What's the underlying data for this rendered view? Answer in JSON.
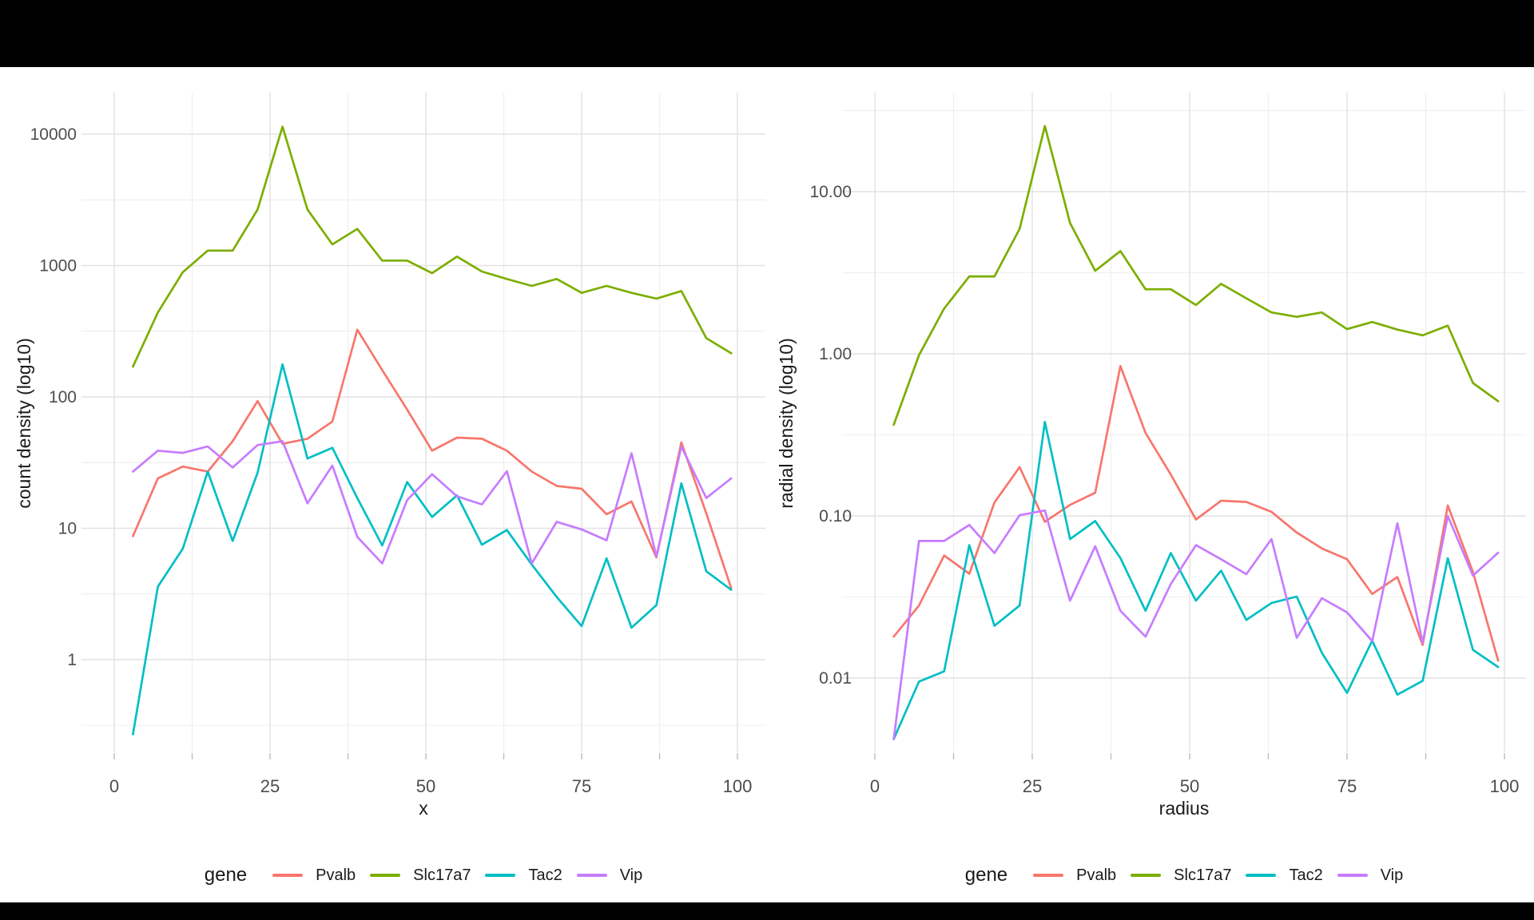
{
  "page": {
    "background": "#ffffff",
    "letterbox_color": "#000000",
    "text_color": "#1a1a1a",
    "tick_label_color": "#4d4d4d",
    "grid_major_color": "#e2e2e2",
    "grid_minor_color": "#efefef",
    "tick_mark_color": "#bdbdbd"
  },
  "chart_data": [
    {
      "type": "line",
      "panel": "left",
      "xlabel": "x",
      "ylabel": "count density (log10)",
      "legend_title": "gene",
      "legend_position": "bottom",
      "grid": true,
      "y_scale": "log10",
      "x_ticks": [
        0,
        25,
        50,
        75,
        100
      ],
      "x_minor_ticks": [
        12.5,
        37.5,
        62.5,
        87.5
      ],
      "y_tick_labels": [
        "10000",
        "1000",
        "100",
        "10",
        "1"
      ],
      "y_tick_values": [
        10000,
        1000,
        100,
        10,
        1
      ],
      "xlim": [
        0,
        100
      ],
      "x": [
        3,
        7,
        11,
        15,
        19,
        23,
        27,
        31,
        35,
        39,
        43,
        47,
        51,
        55,
        59,
        63,
        67,
        71,
        75,
        79,
        83,
        87,
        91,
        95,
        99
      ],
      "series": [
        {
          "name": "Pvalb",
          "color": "#F8766D",
          "values": [
            8.7,
            24,
            29.5,
            27,
            46,
            93,
            44,
            48,
            65,
            325,
            160,
            80,
            39,
            49,
            48,
            39,
            27,
            21,
            20,
            12.8,
            16,
            6,
            45,
            13,
            3.5
          ]
        },
        {
          "name": "Slc17a7",
          "color": "#7CAE00",
          "values": [
            170,
            440,
            890,
            1300,
            1300,
            2670,
            11400,
            2670,
            1450,
            1900,
            1090,
            1090,
            875,
            1170,
            900,
            790,
            700,
            790,
            620,
            700,
            620,
            560,
            640,
            280,
            215
          ]
        },
        {
          "name": "Tac2",
          "color": "#00BFC4",
          "values": [
            0.27,
            3.6,
            7,
            27,
            8,
            26.5,
            177,
            34,
            41,
            17,
            7.4,
            22.5,
            12.2,
            17.8,
            7.5,
            9.7,
            5.3,
            3,
            1.8,
            5.9,
            1.75,
            2.6,
            22,
            4.7,
            3.4
          ]
        },
        {
          "name": "Vip",
          "color": "#C77CFF",
          "values": [
            27,
            39,
            37.5,
            42,
            29,
            43,
            46,
            15.5,
            30,
            8.6,
            5.4,
            16.4,
            25.8,
            17.5,
            15.2,
            27.2,
            5.4,
            11.2,
            9.8,
            8.1,
            37.3,
            6.1,
            42,
            17,
            24
          ]
        }
      ]
    },
    {
      "type": "line",
      "panel": "right",
      "xlabel": "radius",
      "ylabel": "radial density (log10)",
      "legend_title": "gene",
      "legend_position": "bottom",
      "grid": true,
      "y_scale": "log10",
      "x_ticks": [
        0,
        25,
        50,
        75,
        100
      ],
      "x_minor_ticks": [
        12.5,
        37.5,
        62.5,
        87.5
      ],
      "y_tick_labels": [
        "10.00",
        "1.00",
        "0.10",
        "0.01"
      ],
      "y_tick_values": [
        10,
        1,
        0.1,
        0.01
      ],
      "xlim": [
        0,
        100
      ],
      "x": [
        3,
        7,
        11,
        15,
        19,
        23,
        27,
        31,
        35,
        39,
        43,
        47,
        51,
        55,
        59,
        63,
        67,
        71,
        75,
        79,
        83,
        87,
        91,
        95,
        99
      ],
      "series": [
        {
          "name": "Pvalb",
          "color": "#F8766D",
          "values": [
            0.018,
            0.028,
            0.057,
            0.044,
            0.121,
            0.2,
            0.092,
            0.117,
            0.139,
            0.84,
            0.325,
            0.18,
            0.095,
            0.124,
            0.122,
            0.106,
            0.079,
            0.063,
            0.054,
            0.033,
            0.042,
            0.016,
            0.116,
            0.045,
            0.0128
          ]
        },
        {
          "name": "Slc17a7",
          "color": "#7CAE00",
          "values": [
            0.365,
            0.98,
            1.9,
            3,
            3,
            5.9,
            25.4,
            6.4,
            3.25,
            4.3,
            2.5,
            2.5,
            2,
            2.7,
            2.2,
            1.8,
            1.69,
            1.8,
            1.42,
            1.57,
            1.41,
            1.3,
            1.49,
            0.66,
            0.51
          ]
        },
        {
          "name": "Tac2",
          "color": "#00BFC4",
          "values": [
            0.0042,
            0.0095,
            0.011,
            0.066,
            0.021,
            0.028,
            0.38,
            0.072,
            0.093,
            0.055,
            0.026,
            0.059,
            0.03,
            0.046,
            0.0228,
            0.029,
            0.0318,
            0.0143,
            0.0081,
            0.017,
            0.0079,
            0.0096,
            0.0548,
            0.0149,
            0.0117
          ]
        },
        {
          "name": "Vip",
          "color": "#C77CFF",
          "values": [
            0.0042,
            0.07,
            0.07,
            0.088,
            0.059,
            0.101,
            0.108,
            0.03,
            0.065,
            0.026,
            0.018,
            0.038,
            0.066,
            0.054,
            0.0437,
            0.072,
            0.0177,
            0.0311,
            0.0254,
            0.0169,
            0.09,
            0.0165,
            0.1,
            0.0428,
            0.0593
          ]
        }
      ]
    }
  ]
}
